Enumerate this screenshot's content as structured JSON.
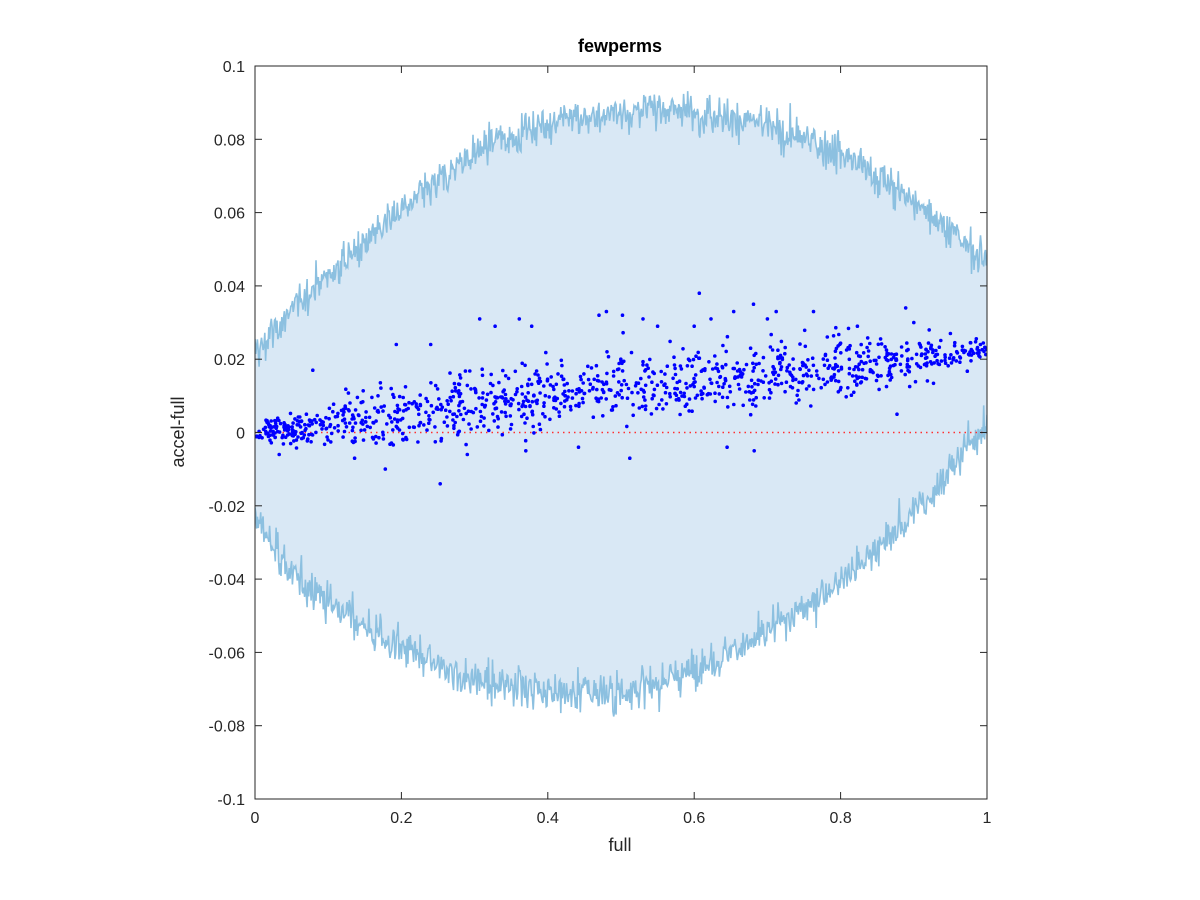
{
  "chart_data": {
    "type": "scatter",
    "title": "fewperms",
    "xlabel": "full",
    "ylabel": "accel-full",
    "xlim": [
      0,
      1
    ],
    "ylim": [
      -0.1,
      0.1
    ],
    "xticks": [
      0,
      0.2,
      0.4,
      0.6,
      0.8,
      1
    ],
    "xtick_labels": [
      "0",
      "0.2",
      "0.4",
      "0.6",
      "0.8",
      "1"
    ],
    "yticks": [
      0.1,
      0.08,
      0.06,
      0.04,
      0.02,
      0,
      -0.02,
      -0.04,
      -0.06,
      -0.08,
      -0.1
    ],
    "ytick_labels": [
      "0.1",
      "0.08",
      "0.06",
      "0.04",
      "0.02",
      "0",
      "-0.02",
      "-0.04",
      "-0.06",
      "-0.08",
      "-0.1"
    ],
    "grid": false,
    "band": {
      "x": [
        0,
        0.02,
        0.05,
        0.1,
        0.15,
        0.2,
        0.25,
        0.3,
        0.35,
        0.4,
        0.45,
        0.5,
        0.55,
        0.6,
        0.65,
        0.7,
        0.75,
        0.8,
        0.85,
        0.9,
        0.95,
        0.98,
        1
      ],
      "upper": [
        0.022,
        0.026,
        0.033,
        0.043,
        0.052,
        0.061,
        0.068,
        0.076,
        0.081,
        0.084,
        0.086,
        0.087,
        0.088,
        0.088,
        0.086,
        0.084,
        0.08,
        0.076,
        0.07,
        0.063,
        0.055,
        0.05,
        0.048
      ],
      "lower": [
        -0.023,
        -0.03,
        -0.038,
        -0.046,
        -0.053,
        -0.059,
        -0.064,
        -0.067,
        -0.069,
        -0.07,
        -0.071,
        -0.071,
        -0.068,
        -0.065,
        -0.06,
        -0.055,
        -0.048,
        -0.04,
        -0.032,
        -0.022,
        -0.01,
        -0.002,
        0.001
      ],
      "fill_color": "#d9e8f5",
      "line_color": "#8cc0e0"
    },
    "trend": {
      "x": [
        0,
        0.1,
        0.2,
        0.3,
        0.4,
        0.5,
        0.6,
        0.7,
        0.8,
        0.9,
        1
      ],
      "y": [
        0.0,
        0.002,
        0.005,
        0.008,
        0.01,
        0.012,
        0.014,
        0.016,
        0.018,
        0.02,
        0.023
      ],
      "spread": [
        0.002,
        0.005,
        0.007,
        0.008,
        0.008,
        0.008,
        0.008,
        0.008,
        0.007,
        0.005,
        0.003
      ]
    },
    "series": [
      {
        "values": [
          [
            0.24,
            0.024
          ],
          [
            0.253,
            -0.014
          ],
          [
            0.307,
            0.031
          ],
          [
            0.328,
            0.029
          ],
          [
            0.361,
            0.031
          ],
          [
            0.378,
            0.029
          ],
          [
            0.48,
            0.033
          ],
          [
            0.47,
            0.032
          ],
          [
            0.502,
            0.032
          ],
          [
            0.53,
            0.031
          ],
          [
            0.607,
            0.038
          ],
          [
            0.623,
            0.031
          ],
          [
            0.654,
            0.033
          ],
          [
            0.681,
            0.035
          ],
          [
            0.712,
            0.033
          ],
          [
            0.763,
            0.033
          ],
          [
            0.823,
            0.029
          ],
          [
            0.889,
            0.034
          ],
          [
            0.682,
            -0.005
          ],
          [
            0.512,
            -0.007
          ],
          [
            0.442,
            -0.004
          ],
          [
            0.178,
            -0.01
          ],
          [
            0.193,
            0.024
          ],
          [
            0.079,
            0.017
          ],
          [
            0.033,
            -0.006
          ],
          [
            0.136,
            -0.007
          ],
          [
            0.877,
            0.005
          ],
          [
            0.921,
            0.028
          ],
          [
            0.95,
            0.027
          ],
          [
            0.9,
            0.03
          ],
          [
            0.55,
            0.029
          ],
          [
            0.6,
            0.029
          ],
          [
            0.7,
            0.031
          ],
          [
            0.645,
            -0.004
          ],
          [
            0.37,
            -0.005
          ],
          [
            0.29,
            -0.006
          ]
        ],
        "color": "#0000ff"
      }
    ],
    "reference_line": {
      "y": 0,
      "color": "#ff3030",
      "style": "dotted"
    }
  }
}
